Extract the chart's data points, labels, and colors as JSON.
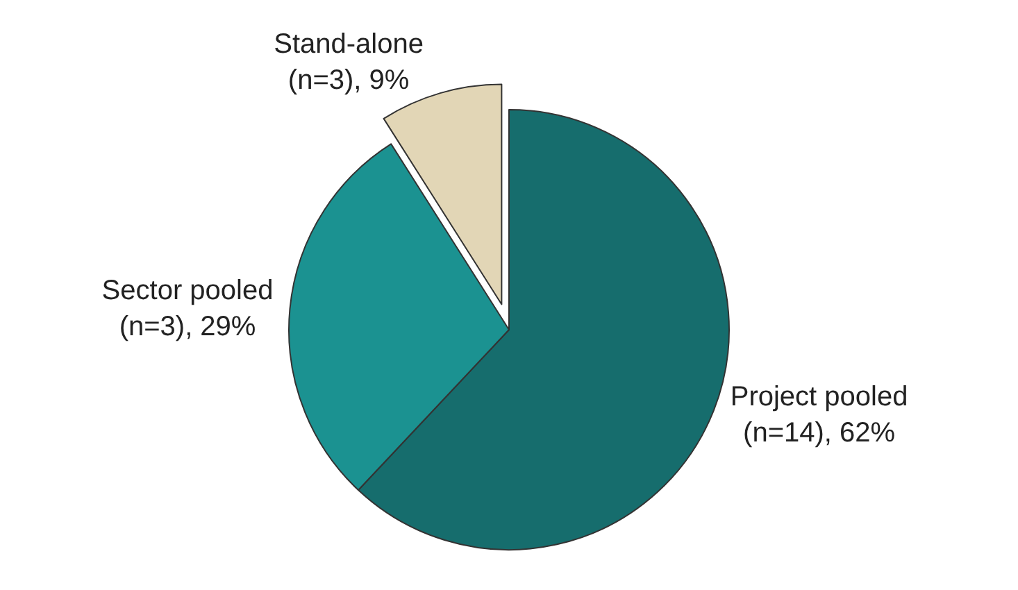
{
  "chart_data": {
    "type": "pie",
    "categories": [
      "Project pooled",
      "Sector pooled",
      "Stand-alone"
    ],
    "values": [
      62,
      29,
      9
    ],
    "value_labels": [
      "(n=14), 62%",
      "(n=3), 29%",
      "(n=3), 9%"
    ],
    "colors": [
      "#166d6d",
      "#1b9291",
      "#e2d6b6"
    ],
    "legend": false
  }
}
